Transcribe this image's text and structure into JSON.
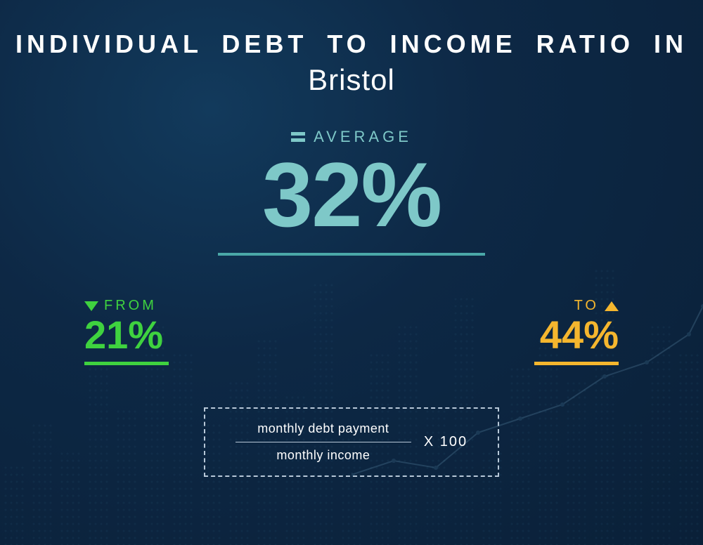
{
  "title": {
    "line1": "INDIVIDUAL DEBT TO INCOME RATIO IN",
    "line2": "Bristol"
  },
  "average": {
    "label": "AVERAGE",
    "value": "32%",
    "color": "#7ec8c8",
    "underline_color": "#4aa8a8",
    "underline_width": 380,
    "fontsize": 130
  },
  "range": {
    "from": {
      "label": "FROM",
      "value": "21%",
      "color": "#3fd23f",
      "arrow": "down"
    },
    "to": {
      "label": "TO",
      "value": "44%",
      "color": "#f5b62e",
      "arrow": "up"
    },
    "value_fontsize": 56,
    "underline_width": 120
  },
  "formula": {
    "numerator": "monthly debt payment",
    "denominator": "monthly income",
    "multiplier": "X 100",
    "border_color": "#b8c8d8",
    "text_color": "#ffffff"
  },
  "background": {
    "gradient_inner": "#123a5c",
    "gradient_mid": "#0d2845",
    "gradient_outer": "#0a2038",
    "dot_color": "#2a5a7a",
    "line_color": "#4a7a9a",
    "bar_heights": [
      120,
      180,
      140,
      260,
      200,
      320,
      280,
      180,
      240,
      300,
      220,
      380,
      160,
      280,
      320,
      200,
      360,
      140,
      260,
      300,
      240,
      400,
      180,
      320,
      280
    ],
    "line_points": [
      [
        0,
        260
      ],
      [
        60,
        240
      ],
      [
        120,
        250
      ],
      [
        180,
        200
      ],
      [
        240,
        180
      ],
      [
        300,
        160
      ],
      [
        360,
        120
      ],
      [
        420,
        100
      ],
      [
        480,
        60
      ],
      [
        500,
        20
      ]
    ]
  },
  "typography": {
    "title_fontsize": 36,
    "subtitle_fontsize": 42,
    "label_fontsize": 20,
    "label_letterspacing": 5
  }
}
